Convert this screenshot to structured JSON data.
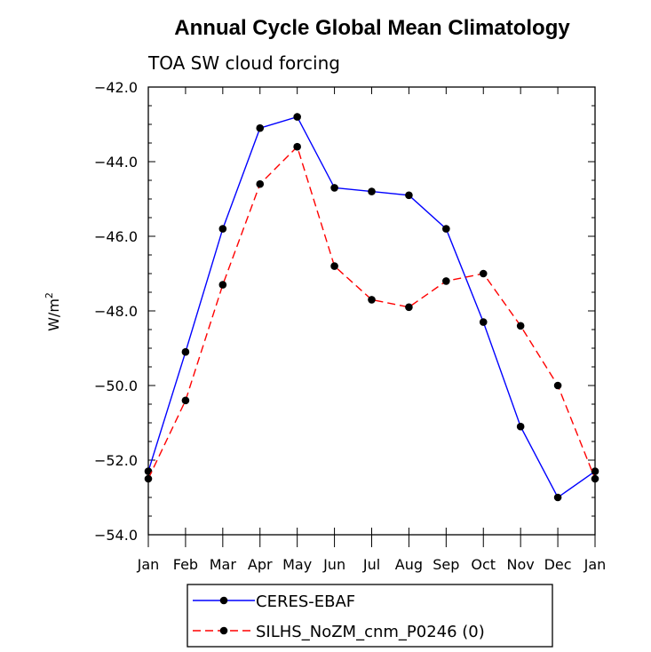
{
  "chart_data": {
    "type": "line",
    "title": "Annual Cycle Global Mean Climatology",
    "subtitle": "TOA SW cloud forcing",
    "ylabel": "W/m",
    "ylabel_sup": "2",
    "ylim": [
      -54.0,
      -42.0
    ],
    "yticks": [
      -42.0,
      -44.0,
      -46.0,
      -48.0,
      -50.0,
      -52.0,
      -54.0
    ],
    "ytick_labels": [
      "−42.0",
      "−44.0",
      "−46.0",
      "−48.0",
      "−50.0",
      "−52.0",
      "−54.0"
    ],
    "categories": [
      "Jan",
      "Feb",
      "Mar",
      "Apr",
      "May",
      "Jun",
      "Jul",
      "Aug",
      "Sep",
      "Oct",
      "Nov",
      "Dec",
      "Jan"
    ],
    "legend_position": "bottom",
    "series": [
      {
        "name": "CERES-EBAF",
        "color": "#0000ff",
        "dash": "solid",
        "values": [
          -52.3,
          -49.1,
          -45.8,
          -43.1,
          -42.8,
          -44.7,
          -44.8,
          -44.9,
          -45.8,
          -48.3,
          -51.1,
          -53.0,
          -52.3
        ]
      },
      {
        "name": "SILHS_NoZM_cnm_P0246 (0)",
        "color": "#ff0000",
        "dash": "dashed",
        "values": [
          -52.5,
          -50.4,
          -47.3,
          -44.6,
          -43.6,
          -46.8,
          -47.7,
          -47.9,
          -47.2,
          -47.0,
          -48.4,
          -50.0,
          -52.5
        ]
      }
    ]
  }
}
